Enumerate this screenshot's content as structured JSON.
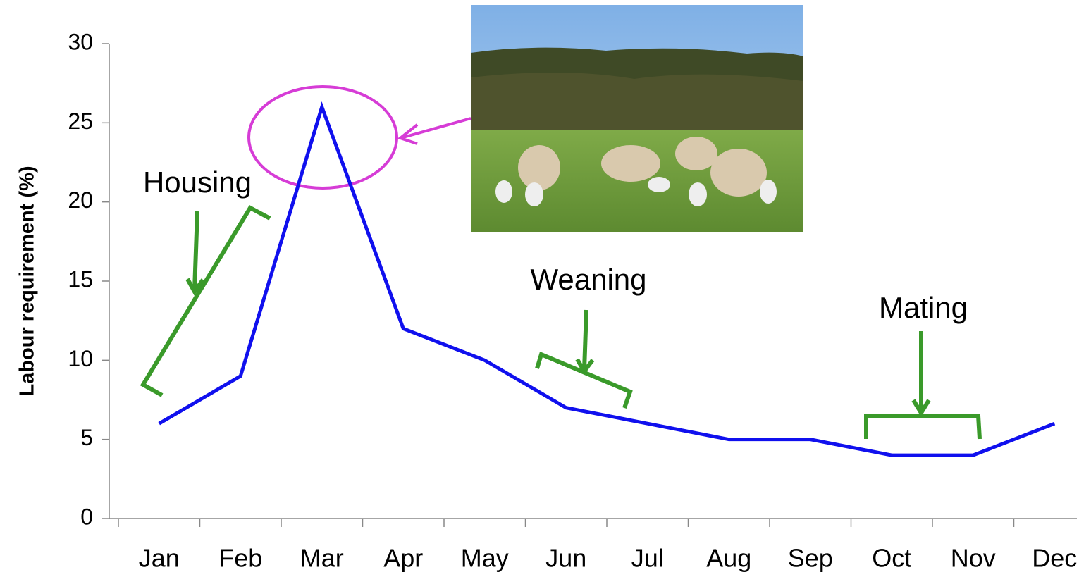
{
  "chart_data": {
    "type": "line",
    "y_label": "Labour requirement (%)",
    "categories": [
      "Jan",
      "Feb",
      "Mar",
      "Apr",
      "May",
      "Jun",
      "Jul",
      "Aug",
      "Sep",
      "Oct",
      "Nov",
      "Dec"
    ],
    "values": [
      6,
      9,
      26,
      12,
      10,
      7,
      6,
      5,
      5,
      4,
      4,
      6
    ],
    "color": "#1010ee",
    "ylim": [
      0,
      30
    ],
    "yticks": [
      0,
      5,
      10,
      15,
      20,
      25,
      30
    ],
    "grid": false,
    "annotations": [
      "Housing",
      "Weaning",
      "Mating"
    ]
  }
}
